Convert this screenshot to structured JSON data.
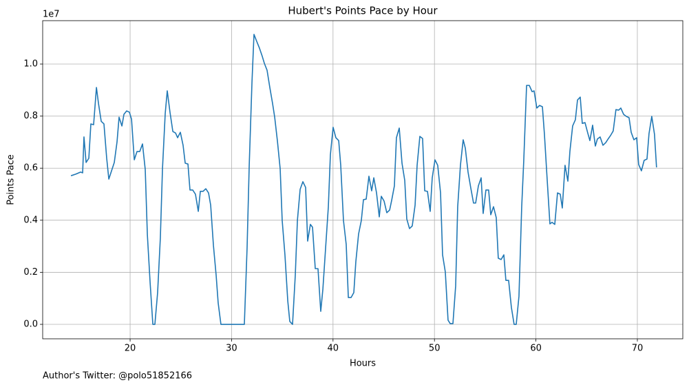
{
  "chart_data": {
    "type": "line",
    "title": "Hubert's Points Pace by Hour",
    "xlabel": "Hours",
    "ylabel": "Points Pace",
    "y_offset_label": "1e7",
    "footnote": "Author's Twitter: @polo51852166",
    "grid": true,
    "xlim": [
      11.38,
      74.48
    ],
    "xticks": [
      20,
      30,
      40,
      50,
      60,
      70
    ],
    "ylim": [
      -555000,
      11667000
    ],
    "yticks": [
      {
        "value": 0,
        "label": "0.0"
      },
      {
        "value": 2000000,
        "label": "0.2"
      },
      {
        "value": 4000000,
        "label": "0.4"
      },
      {
        "value": 6000000,
        "label": "0.6"
      },
      {
        "value": 8000000,
        "label": "0.8"
      },
      {
        "value": 10000000,
        "label": "1.0"
      }
    ],
    "x": [
      14.17,
      14.64,
      15.12,
      15.32,
      15.45,
      15.66,
      15.93,
      16.13,
      16.4,
      16.68,
      16.88,
      17.15,
      17.42,
      17.69,
      17.9,
      18.17,
      18.44,
      18.71,
      18.91,
      19.19,
      19.39,
      19.66,
      19.93,
      20.14,
      20.41,
      20.68,
      20.95,
      21.22,
      21.49,
      21.7,
      21.97,
      22.24,
      22.44,
      22.71,
      22.98,
      23.19,
      23.46,
      23.66,
      23.93,
      24.21,
      24.48,
      24.68,
      24.95,
      25.22,
      25.43,
      25.7,
      25.9,
      26.17,
      26.44,
      26.72,
      26.92,
      27.19,
      27.46,
      27.73,
      27.94,
      28.21,
      28.48,
      28.68,
      28.95,
      31.26,
      31.53,
      31.74,
      32.01,
      32.21,
      32.48,
      32.75,
      33.03,
      33.23,
      33.5,
      33.77,
      34.04,
      34.25,
      34.52,
      34.79,
      34.99,
      35.26,
      35.54,
      35.74,
      36.01,
      36.28,
      36.49,
      36.76,
      37.03,
      37.3,
      37.5,
      37.77,
      37.98,
      38.25,
      38.52,
      38.79,
      39.0,
      39.27,
      39.54,
      39.74,
      40.01,
      40.28,
      40.56,
      40.76,
      41.03,
      41.3,
      41.51,
      41.78,
      42.05,
      42.25,
      42.52,
      42.79,
      43.0,
      43.27,
      43.54,
      43.81,
      44.02,
      44.29,
      44.56,
      44.76,
      45.03,
      45.3,
      45.58,
      45.78,
      46.05,
      46.25,
      46.53,
      46.8,
      47.07,
      47.27,
      47.54,
      47.81,
      48.09,
      48.29,
      48.56,
      48.83,
      49.04,
      49.31,
      49.58,
      49.78,
      50.05,
      50.32,
      50.6,
      50.8,
      51.07,
      51.34,
      51.55,
      51.82,
      52.09,
      52.29,
      52.56,
      52.83,
      53.04,
      53.31,
      53.58,
      53.85,
      54.06,
      54.33,
      54.6,
      54.8,
      55.07,
      55.34,
      55.55,
      55.82,
      56.09,
      56.29,
      56.57,
      56.84,
      57.04,
      57.31,
      57.58,
      57.85,
      58.06,
      58.33,
      58.6,
      58.8,
      59.08,
      59.35,
      59.62,
      59.82,
      60.09,
      60.36,
      60.64,
      60.84,
      61.11,
      61.38,
      61.59,
      61.86,
      62.13,
      62.4,
      62.6,
      62.87,
      63.15,
      63.35,
      63.62,
      63.89,
      64.1,
      64.37,
      64.57,
      64.84,
      65.11,
      65.32,
      65.59,
      65.86,
      66.06,
      66.33,
      66.61,
      66.88,
      67.15,
      67.35,
      67.62,
      67.89,
      68.16,
      68.37,
      68.64,
      68.91,
      69.18,
      69.39,
      69.66,
      69.93,
      70.13,
      70.4,
      70.67,
      70.95,
      71.15,
      71.42,
      71.69,
      71.89
    ],
    "series": [
      {
        "name": "Points Pace",
        "color": "#1f77b4",
        "values": [
          5710000,
          5770000,
          5850000,
          5820000,
          7200000,
          6220000,
          6380000,
          7700000,
          7670000,
          9100000,
          8490000,
          7800000,
          7700000,
          6380000,
          5580000,
          5900000,
          6220000,
          7010000,
          7960000,
          7620000,
          8070000,
          8200000,
          8150000,
          7880000,
          6320000,
          6640000,
          6640000,
          6930000,
          5950000,
          3440000,
          1610000,
          0,
          0,
          1220000,
          3330000,
          5980000,
          8100000,
          8970000,
          8150000,
          7410000,
          7350000,
          7170000,
          7380000,
          6880000,
          6190000,
          6160000,
          5160000,
          5160000,
          5000000,
          4340000,
          5110000,
          5110000,
          5210000,
          5050000,
          4580000,
          3040000,
          1880000,
          820000,
          0,
          0,
          2940000,
          6110000,
          9290000,
          11140000,
          10870000,
          10610000,
          10290000,
          10030000,
          9760000,
          9100000,
          8490000,
          7960000,
          7040000,
          5980000,
          3990000,
          2670000,
          900000,
          110000,
          0,
          1880000,
          3990000,
          5190000,
          5480000,
          5260000,
          3200000,
          3840000,
          3730000,
          2140000,
          2140000,
          500000,
          1350000,
          2940000,
          4520000,
          6510000,
          7570000,
          7170000,
          7060000,
          6110000,
          3990000,
          3070000,
          1030000,
          1030000,
          1220000,
          2410000,
          3470000,
          3990000,
          4790000,
          4810000,
          5690000,
          5130000,
          5630000,
          5050000,
          4130000,
          4920000,
          4740000,
          4290000,
          4390000,
          4760000,
          5320000,
          7170000,
          7540000,
          6190000,
          5530000,
          4050000,
          3680000,
          3780000,
          4580000,
          6110000,
          7220000,
          7140000,
          5130000,
          5110000,
          4340000,
          5630000,
          6320000,
          6110000,
          5050000,
          2670000,
          2010000,
          160000,
          30000,
          30000,
          1480000,
          4520000,
          6110000,
          7090000,
          6770000,
          5850000,
          5240000,
          4660000,
          4660000,
          5320000,
          5630000,
          4260000,
          5160000,
          5160000,
          4210000,
          4520000,
          4100000,
          2540000,
          2490000,
          2670000,
          1690000,
          1690000,
          660000,
          0,
          0,
          1080000,
          4520000,
          6270000,
          9180000,
          9180000,
          8940000,
          8970000,
          8310000,
          8410000,
          8360000,
          7300000,
          5560000,
          3860000,
          3920000,
          3840000,
          5050000,
          5000000,
          4470000,
          6110000,
          5500000,
          6640000,
          7620000,
          7860000,
          8620000,
          8730000,
          7720000,
          7750000,
          7350000,
          7060000,
          7650000,
          6850000,
          7120000,
          7200000,
          6880000,
          6980000,
          7140000,
          7250000,
          7430000,
          8250000,
          8230000,
          8310000,
          8070000,
          7990000,
          7940000,
          7380000,
          7090000,
          7170000,
          6140000,
          5900000,
          6300000,
          6350000,
          7330000,
          7990000,
          7300000,
          6030000
        ]
      }
    ]
  }
}
